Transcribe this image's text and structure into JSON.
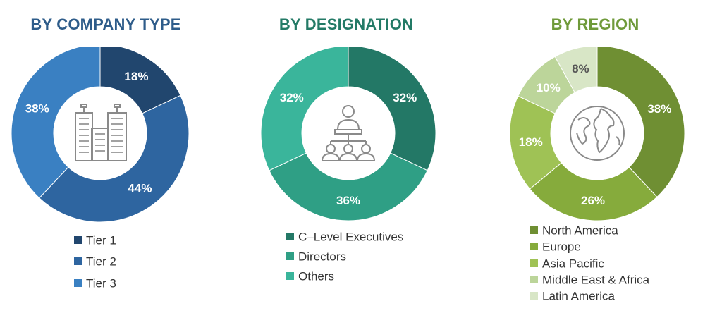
{
  "chart_data": [
    {
      "type": "pie",
      "title": "BY COMPANY TYPE",
      "title_color": "#2e5c8a",
      "categories": [
        "Tier 1",
        "Tier 2",
        "Tier 3"
      ],
      "values": [
        18,
        44,
        38
      ],
      "labels": [
        "18%",
        "44%",
        "38%"
      ],
      "colors": [
        "#21466e",
        "#2e65a0",
        "#3a80c2"
      ],
      "label_colors": [
        "#ffffff",
        "#ffffff",
        "#ffffff"
      ],
      "center_icon": "buildings-icon",
      "legend_position": "bottom"
    },
    {
      "type": "pie",
      "title": "BY DESIGNATION",
      "title_color": "#237a66",
      "categories": [
        "C–Level Executives",
        "Directors",
        "Others"
      ],
      "values": [
        32,
        36,
        32
      ],
      "labels": [
        "32%",
        "36%",
        "32%"
      ],
      "colors": [
        "#237866",
        "#2f9f85",
        "#3ab59b"
      ],
      "label_colors": [
        "#ffffff",
        "#ffffff",
        "#ffffff"
      ],
      "center_icon": "meeting-presenter-icon",
      "legend_position": "bottom"
    },
    {
      "type": "pie",
      "title": "BY REGION",
      "title_color": "#6f9a3a",
      "categories": [
        "North America",
        "Europe",
        "Asia Pacific",
        "Middle East & Africa",
        "Latin America"
      ],
      "values": [
        38,
        26,
        18,
        10,
        8
      ],
      "labels": [
        "38%",
        "26%",
        "18%",
        "10%",
        "8%"
      ],
      "colors": [
        "#6f8f33",
        "#86ab3c",
        "#9fc255",
        "#bcd59a",
        "#d8e6c6"
      ],
      "label_colors": [
        "#ffffff",
        "#ffffff",
        "#ffffff",
        "#ffffff",
        "#555555"
      ],
      "center_icon": "globe-icon",
      "legend_position": "bottom"
    }
  ]
}
